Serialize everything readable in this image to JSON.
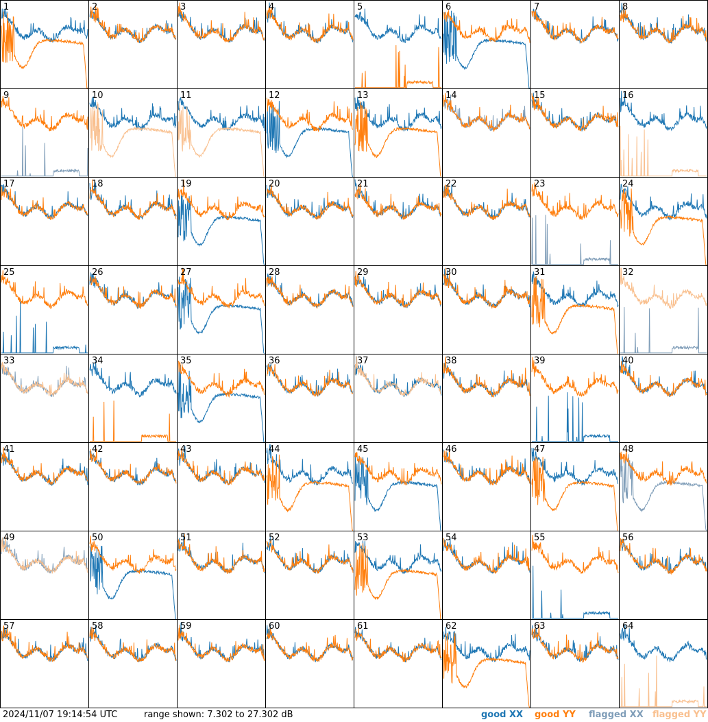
{
  "footer": {
    "timestamp": "2024/11/07 19:14:54 UTC",
    "range_text": "range shown: 7.302 to 27.302 dB"
  },
  "legend": [
    {
      "label": "good XX",
      "color": "#1f77b4"
    },
    {
      "label": "good YY",
      "color": "#ff7f0e"
    },
    {
      "label": "flagged XX",
      "color": "#7f9db8"
    },
    {
      "label": "flagged YY",
      "color": "#f9c08f"
    }
  ],
  "colors": {
    "good_xx": "#1f77b4",
    "good_yy": "#ff7f0e",
    "flagged_xx": "#7f9db8",
    "flagged_yy": "#f9c08f"
  },
  "chart_data": {
    "type": "line",
    "range_db": [
      7.302,
      27.302
    ],
    "grid_rows": 8,
    "grid_cols": 8,
    "panels": [
      {
        "label": "1",
        "xx": "good",
        "yy": "good",
        "xx_shape": "a",
        "yy_shape": "dip"
      },
      {
        "label": "2",
        "xx": "good",
        "yy": "good",
        "xx_shape": "a",
        "yy_shape": "a"
      },
      {
        "label": "3",
        "xx": "good",
        "yy": "good",
        "xx_shape": "a",
        "yy_shape": "a"
      },
      {
        "label": "4",
        "xx": "good",
        "yy": "good",
        "xx_shape": "a",
        "yy_shape": "a"
      },
      {
        "label": "5",
        "xx": "good",
        "yy": "good",
        "xx_shape": "a",
        "yy_shape": "low"
      },
      {
        "label": "6",
        "xx": "good",
        "yy": "good",
        "xx_shape": "dip",
        "yy_shape": "a"
      },
      {
        "label": "7",
        "xx": "good",
        "yy": "good",
        "xx_shape": "a",
        "yy_shape": "a"
      },
      {
        "label": "8",
        "xx": "good",
        "yy": "good",
        "xx_shape": "a",
        "yy_shape": "a"
      },
      {
        "label": "9",
        "xx": "flagged",
        "yy": "good",
        "xx_shape": "low",
        "yy_shape": "a"
      },
      {
        "label": "10",
        "xx": "good",
        "yy": "flagged",
        "xx_shape": "a",
        "yy_shape": "dip"
      },
      {
        "label": "11",
        "xx": "good",
        "yy": "flagged",
        "xx_shape": "a",
        "yy_shape": "dip"
      },
      {
        "label": "12",
        "xx": "good",
        "yy": "good",
        "xx_shape": "dip",
        "yy_shape": "a"
      },
      {
        "label": "13",
        "xx": "good",
        "yy": "good",
        "xx_shape": "a",
        "yy_shape": "dip"
      },
      {
        "label": "14",
        "xx": "flagged",
        "yy": "good",
        "xx_shape": "a",
        "yy_shape": "a"
      },
      {
        "label": "15",
        "xx": "good",
        "yy": "good",
        "xx_shape": "a",
        "yy_shape": "a"
      },
      {
        "label": "16",
        "xx": "good",
        "yy": "flagged",
        "xx_shape": "a",
        "yy_shape": "low"
      },
      {
        "label": "17",
        "xx": "good",
        "yy": "good",
        "xx_shape": "a",
        "yy_shape": "a"
      },
      {
        "label": "18",
        "xx": "good",
        "yy": "good",
        "xx_shape": "a",
        "yy_shape": "a"
      },
      {
        "label": "19",
        "xx": "good",
        "yy": "good",
        "xx_shape": "dip",
        "yy_shape": "a"
      },
      {
        "label": "20",
        "xx": "good",
        "yy": "good",
        "xx_shape": "a",
        "yy_shape": "a"
      },
      {
        "label": "21",
        "xx": "good",
        "yy": "good",
        "xx_shape": "a",
        "yy_shape": "a"
      },
      {
        "label": "22",
        "xx": "good",
        "yy": "good",
        "xx_shape": "a",
        "yy_shape": "a"
      },
      {
        "label": "23",
        "xx": "flagged",
        "yy": "good",
        "xx_shape": "low",
        "yy_shape": "a"
      },
      {
        "label": "24",
        "xx": "good",
        "yy": "good",
        "xx_shape": "a",
        "yy_shape": "dip"
      },
      {
        "label": "25",
        "xx": "good",
        "yy": "good",
        "xx_shape": "low",
        "yy_shape": "a"
      },
      {
        "label": "26",
        "xx": "good",
        "yy": "good",
        "xx_shape": "a",
        "yy_shape": "a"
      },
      {
        "label": "27",
        "xx": "good",
        "yy": "good",
        "xx_shape": "dip",
        "yy_shape": "a"
      },
      {
        "label": "28",
        "xx": "good",
        "yy": "good",
        "xx_shape": "a",
        "yy_shape": "a"
      },
      {
        "label": "29",
        "xx": "good",
        "yy": "good",
        "xx_shape": "a",
        "yy_shape": "a"
      },
      {
        "label": "30",
        "xx": "good",
        "yy": "good",
        "xx_shape": "a",
        "yy_shape": "a"
      },
      {
        "label": "31",
        "xx": "good",
        "yy": "good",
        "xx_shape": "a",
        "yy_shape": "dip"
      },
      {
        "label": "32",
        "xx": "flagged",
        "yy": "flagged",
        "xx_shape": "low",
        "yy_shape": "a"
      },
      {
        "label": "33",
        "xx": "flagged",
        "yy": "flagged",
        "xx_shape": "a",
        "yy_shape": "a"
      },
      {
        "label": "34",
        "xx": "good",
        "yy": "good",
        "xx_shape": "a",
        "yy_shape": "low"
      },
      {
        "label": "35",
        "xx": "good",
        "yy": "good",
        "xx_shape": "dip",
        "yy_shape": "a"
      },
      {
        "label": "36",
        "xx": "good",
        "yy": "good",
        "xx_shape": "a",
        "yy_shape": "a"
      },
      {
        "label": "37",
        "xx": "good",
        "yy": "flagged",
        "xx_shape": "a",
        "yy_shape": "a"
      },
      {
        "label": "38",
        "xx": "good",
        "yy": "good",
        "xx_shape": "a",
        "yy_shape": "a"
      },
      {
        "label": "39",
        "xx": "good",
        "yy": "good",
        "xx_shape": "low",
        "yy_shape": "a"
      },
      {
        "label": "40",
        "xx": "good",
        "yy": "good",
        "xx_shape": "a",
        "yy_shape": "a"
      },
      {
        "label": "41",
        "xx": "good",
        "yy": "good",
        "xx_shape": "a",
        "yy_shape": "a"
      },
      {
        "label": "42",
        "xx": "good",
        "yy": "good",
        "xx_shape": "a",
        "yy_shape": "a"
      },
      {
        "label": "43",
        "xx": "good",
        "yy": "good",
        "xx_shape": "a",
        "yy_shape": "a"
      },
      {
        "label": "44",
        "xx": "good",
        "yy": "good",
        "xx_shape": "a",
        "yy_shape": "dip"
      },
      {
        "label": "45",
        "xx": "good",
        "yy": "good",
        "xx_shape": "dip",
        "yy_shape": "a"
      },
      {
        "label": "46",
        "xx": "good",
        "yy": "good",
        "xx_shape": "a",
        "yy_shape": "a"
      },
      {
        "label": "47",
        "xx": "good",
        "yy": "good",
        "xx_shape": "a",
        "yy_shape": "dip"
      },
      {
        "label": "48",
        "xx": "flagged",
        "yy": "good",
        "xx_shape": "dip",
        "yy_shape": "a"
      },
      {
        "label": "49",
        "xx": "flagged",
        "yy": "flagged",
        "xx_shape": "a",
        "yy_shape": "a"
      },
      {
        "label": "50",
        "xx": "good",
        "yy": "good",
        "xx_shape": "dip",
        "yy_shape": "a"
      },
      {
        "label": "51",
        "xx": "good",
        "yy": "good",
        "xx_shape": "a",
        "yy_shape": "a"
      },
      {
        "label": "52",
        "xx": "good",
        "yy": "good",
        "xx_shape": "a",
        "yy_shape": "a"
      },
      {
        "label": "53",
        "xx": "good",
        "yy": "good",
        "xx_shape": "a",
        "yy_shape": "dip"
      },
      {
        "label": "54",
        "xx": "good",
        "yy": "good",
        "xx_shape": "a",
        "yy_shape": "a"
      },
      {
        "label": "55",
        "xx": "good",
        "yy": "good",
        "xx_shape": "low",
        "yy_shape": "a"
      },
      {
        "label": "56",
        "xx": "good",
        "yy": "good",
        "xx_shape": "a",
        "yy_shape": "a"
      },
      {
        "label": "57",
        "xx": "good",
        "yy": "good",
        "xx_shape": "a",
        "yy_shape": "a"
      },
      {
        "label": "58",
        "xx": "good",
        "yy": "good",
        "xx_shape": "a",
        "yy_shape": "a"
      },
      {
        "label": "59",
        "xx": "good",
        "yy": "good",
        "xx_shape": "a",
        "yy_shape": "a"
      },
      {
        "label": "60",
        "xx": "good",
        "yy": "good",
        "xx_shape": "a",
        "yy_shape": "a"
      },
      {
        "label": "61",
        "xx": "good",
        "yy": "good",
        "xx_shape": "a",
        "yy_shape": "a"
      },
      {
        "label": "62",
        "xx": "good",
        "yy": "good",
        "xx_shape": "a",
        "yy_shape": "dip"
      },
      {
        "label": "63",
        "xx": "good",
        "yy": "good",
        "xx_shape": "a",
        "yy_shape": "a"
      },
      {
        "label": "64",
        "xx": "good",
        "yy": "flagged",
        "xx_shape": "a",
        "yy_shape": "low"
      }
    ]
  }
}
